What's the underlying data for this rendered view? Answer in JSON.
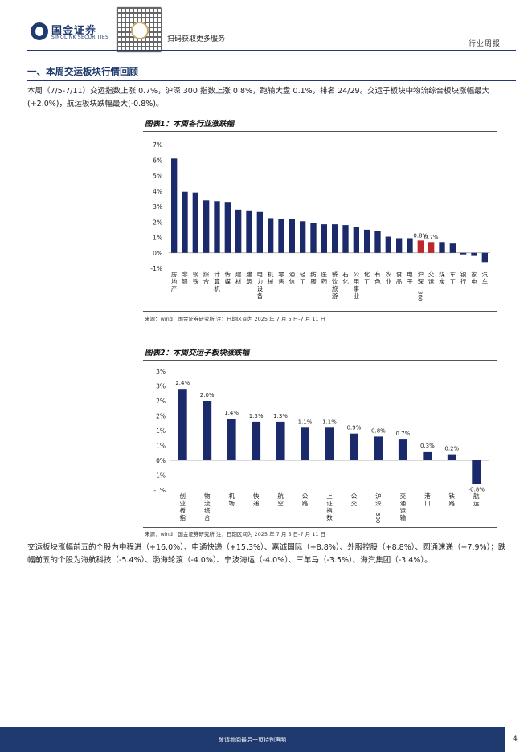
{
  "header": {
    "brand_cn": "国金证券",
    "brand_en": "SINOLINK SECURITIES",
    "qr_caption": "扫码获取更多服务",
    "report_type": "行业周报"
  },
  "section": {
    "title": "一、本周交运板块行情回顾",
    "intro": "本周（7/5-7/11）交运指数上涨 0.7%，沪深 300 指数上涨 0.8%，跑输大盘 0.1%，排名 24/29。交运子板块中物流综合板块涨幅最大(+2.0%)，航运板块跌幅最大(-0.8%)。",
    "outro": "交运板块涨幅前五的个股为中程进（+16.0%）、申通快递（+15.3%）、嘉诚国际（+8.8%）、外服控股（+8.8%）、圆通速递（+7.9%）；跌幅前五的个股为海航科技（-5.4%）、渤海轮渡（-4.0%）、宁波海运（-4.0%）、三羊马（-3.5%）、海汽集团（-3.4%）。"
  },
  "figures": [
    {
      "title": "图表1：本周各行业涨跌幅",
      "source": "来源：wind，国金证券研究所    注：日期区间为 2025 年 7 月 5 日-7 月 11 日"
    },
    {
      "title": "图表2：本周交运子板块涨跌幅",
      "source": "来源：wind，国金证券研究所    注：日期区间为 2025 年 7 月 5 日-7 月 11 日"
    }
  ],
  "chart_data": [
    {
      "type": "bar",
      "ylim": [
        -1,
        7
      ],
      "yticks": [
        "-1%",
        "0%",
        "1%",
        "2%",
        "3%",
        "4%",
        "5%",
        "6%",
        "7%"
      ],
      "categories": [
        "房地产",
        "非银",
        "钢铁",
        "综合",
        "计算机",
        "传媒",
        "建材",
        "建筑",
        "电力设备",
        "机械",
        "零售",
        "通信",
        "轻工",
        "纺服",
        "医药",
        "餐饮旅游",
        "石化",
        "公用事业",
        "化工",
        "有色",
        "农业",
        "食品",
        "电子",
        "沪深300",
        "交运",
        "煤炭",
        "军工",
        "银行",
        "家电",
        "汽车"
      ],
      "values": [
        6.1,
        3.95,
        3.9,
        3.4,
        3.35,
        3.25,
        2.8,
        2.7,
        2.65,
        2.25,
        2.2,
        2.2,
        2.05,
        1.95,
        1.85,
        1.85,
        1.8,
        1.7,
        1.5,
        1.4,
        1.05,
        0.95,
        0.95,
        0.8,
        0.7,
        0.7,
        0.6,
        -0.1,
        -0.2,
        -0.6
      ],
      "highlight": [
        "沪深300",
        "交运"
      ],
      "data_labels": {
        "沪深300": "0.8%",
        "交运": "0.7%"
      },
      "colors": {
        "bar": "#1b2a6b",
        "highlight": "#c0272d"
      }
    },
    {
      "type": "bar",
      "ylim": [
        -1,
        3
      ],
      "yticks": [
        "-1%",
        "-1%",
        "0%",
        "1%",
        "1%",
        "2%",
        "2%",
        "3%",
        "3%"
      ],
      "categories": [
        "创业板指",
        "物流综合",
        "机场",
        "快递",
        "航空",
        "公路",
        "上证指数",
        "公交",
        "沪深300",
        "交通运输",
        "港口",
        "铁路",
        "航运"
      ],
      "values": [
        2.4,
        2.0,
        1.4,
        1.3,
        1.3,
        1.1,
        1.1,
        0.9,
        0.8,
        0.7,
        0.3,
        0.2,
        -0.8
      ],
      "data_labels": [
        "2.4%",
        "2.0%",
        "1.4%",
        "1.3%",
        "1.3%",
        "1.1%",
        "1.1%",
        "0.9%",
        "0.8%",
        "0.7%",
        "0.3%",
        "0.2%",
        "-0.8%"
      ],
      "colors": {
        "bar": "#1b2a6b"
      }
    }
  ],
  "footer": {
    "disclaimer": "敬请参阅最后一页特别声明",
    "page": "4"
  }
}
